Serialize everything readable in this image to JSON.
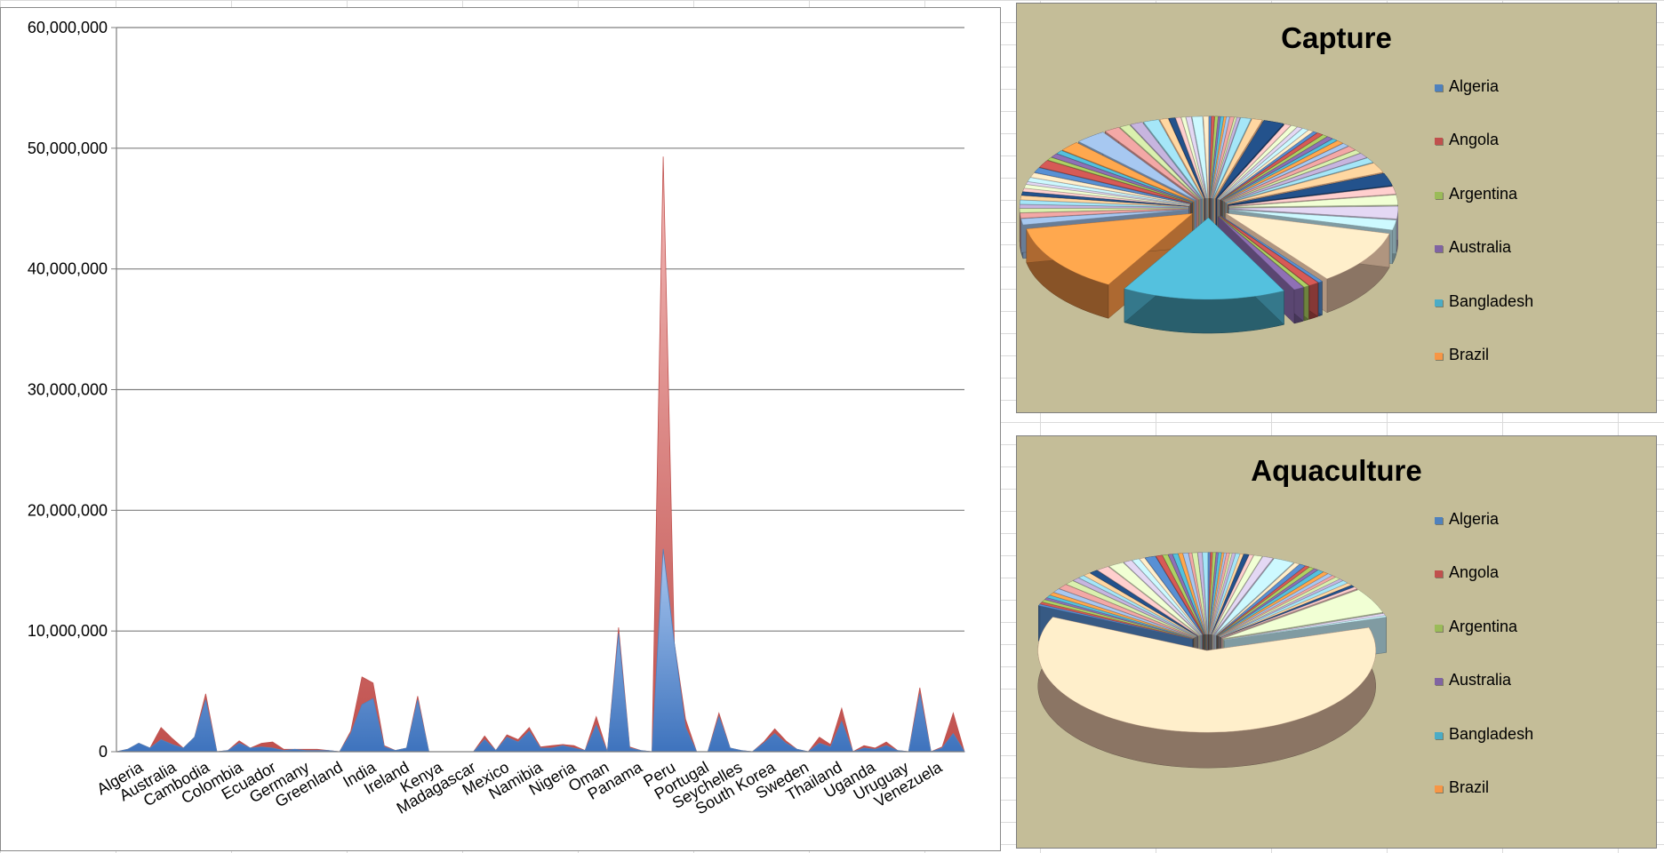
{
  "chart_data": [
    {
      "type": "area",
      "stacked": true,
      "title": "",
      "xlabel": "",
      "ylabel": "",
      "ylim": [
        0,
        60000000
      ],
      "yticks": [
        0,
        10000000,
        20000000,
        30000000,
        40000000,
        50000000,
        60000000
      ],
      "ytick_labels": [
        "0",
        "10,000,000",
        "20,000,000",
        "30,000,000",
        "40,000,000",
        "50,000,000",
        "60,000,000"
      ],
      "grid": true,
      "x_labels": [
        "Algeria",
        "Australia",
        "Cambodia",
        "Colombia",
        "Ecuador",
        "Germany",
        "Greenland",
        "India",
        "Ireland",
        "Kenya",
        "Madagascar",
        "Mexico",
        "Namibia",
        "Nigeria",
        "Oman",
        "Panama",
        "Peru",
        "Portugal",
        "Seychelles",
        "South Korea",
        "Sweden",
        "Thailand",
        "Uganda",
        "Uruguay",
        "Venezuela"
      ],
      "series": [
        {
          "color": "#4f81bd",
          "values": [
            0,
            200000,
            700000,
            300000,
            1000000,
            600000,
            300000,
            1200000,
            4300000,
            0,
            100000,
            700000,
            300000,
            400000,
            300000,
            100000,
            200000,
            100000,
            100000,
            100000,
            0,
            1500000,
            3900000,
            4400000,
            400000,
            100000,
            300000,
            4300000,
            0,
            0,
            0,
            0,
            0,
            1000000,
            100000,
            1200000,
            800000,
            1700000,
            300000,
            300000,
            500000,
            300000,
            100000,
            2200000,
            0,
            9800000,
            300000,
            100000,
            0,
            16800000,
            9000000,
            2000000,
            0,
            0,
            2900000,
            300000,
            100000,
            0,
            700000,
            1500000,
            700000,
            200000,
            0,
            700000,
            400000,
            2500000,
            0,
            300000,
            200000,
            500000,
            100000,
            0,
            4800000,
            0,
            300000,
            1500000,
            0
          ]
        },
        {
          "color": "#c0504d",
          "values": [
            0,
            0,
            0,
            0,
            1000000,
            500000,
            0,
            0,
            500000,
            0,
            0,
            200000,
            0,
            300000,
            500000,
            100000,
            0,
            100000,
            100000,
            0,
            0,
            200000,
            2300000,
            1300000,
            100000,
            0,
            0,
            300000,
            0,
            0,
            0,
            0,
            0,
            300000,
            0,
            200000,
            200000,
            300000,
            100000,
            200000,
            100000,
            200000,
            0,
            700000,
            0,
            500000,
            100000,
            0,
            0,
            32500000,
            0,
            700000,
            0,
            0,
            300000,
            0,
            0,
            0,
            100000,
            400000,
            200000,
            0,
            0,
            500000,
            200000,
            1100000,
            0,
            200000,
            100000,
            300000,
            0,
            0,
            500000,
            0,
            100000,
            1700000,
            0
          ]
        }
      ]
    },
    {
      "type": "pie",
      "title": "Capture",
      "legend": "right",
      "legend_entries": [
        "Algeria",
        "Angola",
        "Argentina",
        "Australia",
        "Bangladesh",
        "Brazil"
      ],
      "values": [
        0.2,
        0.3,
        0.3,
        0.2,
        0.3,
        0.2,
        0.3,
        0.4,
        0.2,
        0.3,
        1.0,
        1.0,
        2.0,
        0.6,
        0.6,
        0.5,
        0.6,
        0.5,
        0.4,
        0.6,
        0.5,
        0.6,
        0.5,
        0.7,
        0.7,
        0.9,
        0.7,
        1.0,
        1.0,
        2.0,
        2.5,
        1.5,
        2.0,
        2.5,
        2.0,
        11.0,
        0.4,
        1.0,
        0.5,
        1.0,
        16.0,
        14.0,
        1.2,
        1.0,
        0.8,
        0.7,
        0.8,
        0.8,
        0.7,
        0.6,
        0.7,
        0.5,
        0.8,
        0.9,
        1.0,
        1.5,
        0.6,
        0.8,
        0.7,
        2.0,
        3.0,
        1.5,
        1.0,
        1.2,
        1.5,
        0.8,
        0.6,
        0.5,
        0.4,
        0.5,
        1.0,
        0.5
      ]
    },
    {
      "type": "pie",
      "title": "Aquaculture",
      "legend": "right",
      "legend_entries": [
        "Algeria",
        "Angola",
        "Argentina",
        "Australia",
        "Bangladesh",
        "Brazil"
      ],
      "values": [
        0.2,
        0.2,
        0.3,
        0.2,
        0.3,
        0.2,
        0.2,
        0.3,
        0.2,
        0.3,
        0.4,
        0.3,
        0.5,
        0.4,
        0.8,
        1.0,
        2.0,
        0.5,
        0.6,
        0.4,
        0.5,
        0.4,
        0.6,
        0.5,
        0.5,
        0.4,
        0.5,
        0.4,
        0.6,
        0.5,
        0.4,
        0.4,
        5.0,
        0.4,
        0.3,
        62.0,
        0.3,
        0.4,
        0.5,
        0.4,
        0.5,
        0.6,
        0.8,
        1.0,
        0.9,
        0.7,
        0.6,
        0.7,
        0.8,
        1.2,
        1.5,
        0.8,
        0.7,
        0.5,
        1.0,
        0.6,
        0.5,
        0.4,
        0.5,
        0.4,
        0.5,
        0.3,
        0.5,
        0.4,
        0.5
      ]
    }
  ]
}
